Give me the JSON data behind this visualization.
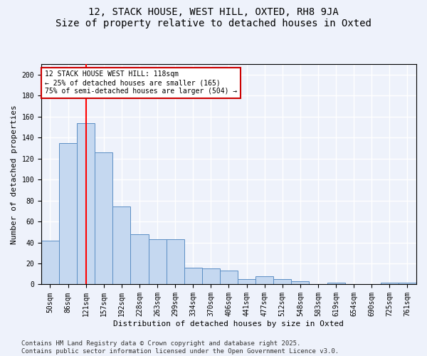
{
  "title": "12, STACK HOUSE, WEST HILL, OXTED, RH8 9JA",
  "subtitle": "Size of property relative to detached houses in Oxted",
  "xlabel": "Distribution of detached houses by size in Oxted",
  "ylabel": "Number of detached properties",
  "categories": [
    "50sqm",
    "86sqm",
    "121sqm",
    "157sqm",
    "192sqm",
    "228sqm",
    "263sqm",
    "299sqm",
    "334sqm",
    "370sqm",
    "406sqm",
    "441sqm",
    "477sqm",
    "512sqm",
    "548sqm",
    "583sqm",
    "619sqm",
    "654sqm",
    "690sqm",
    "725sqm",
    "761sqm"
  ],
  "values": [
    42,
    135,
    154,
    126,
    74,
    48,
    43,
    43,
    16,
    15,
    13,
    5,
    8,
    5,
    3,
    0,
    2,
    0,
    0,
    2,
    2
  ],
  "bar_color": "#c5d8f0",
  "bar_edge_color": "#5b8ec4",
  "red_line_x": 2.0,
  "annotation_text": "12 STACK HOUSE WEST HILL: 118sqm\n← 25% of detached houses are smaller (165)\n75% of semi-detached houses are larger (504) →",
  "annotation_box_facecolor": "#ffffff",
  "annotation_box_edgecolor": "#cc0000",
  "ylim": [
    0,
    210
  ],
  "yticks": [
    0,
    20,
    40,
    60,
    80,
    100,
    120,
    140,
    160,
    180,
    200
  ],
  "footer_line1": "Contains HM Land Registry data © Crown copyright and database right 2025.",
  "footer_line2": "Contains public sector information licensed under the Open Government Licence v3.0.",
  "background_color": "#eef2fb",
  "grid_color": "#ffffff",
  "title_fontsize": 10,
  "axis_label_fontsize": 8,
  "tick_fontsize": 7,
  "annotation_fontsize": 7,
  "footer_fontsize": 6.5
}
